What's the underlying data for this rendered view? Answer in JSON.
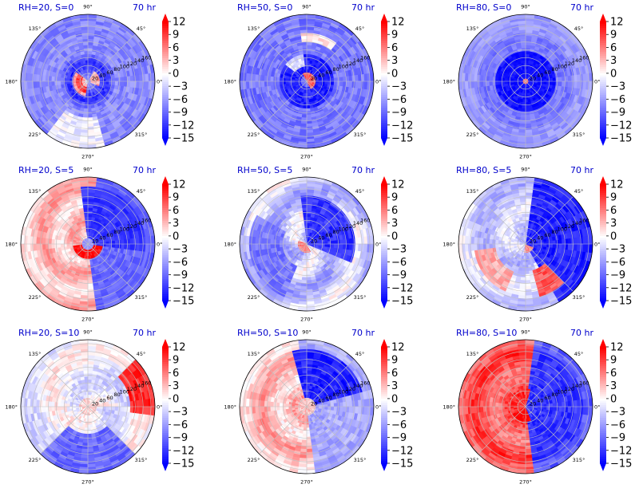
{
  "colors": {
    "blue": "#0000ff",
    "white": "#ffffff",
    "red": "#ff0000",
    "title": "#0000cc",
    "grid": "#c0c0c0"
  },
  "chart_data": [
    {
      "type": "heatmap",
      "projection": "polar",
      "title_left": "RH=20, S=0",
      "title_right": "70 hr",
      "theta_ticks": [
        "90°",
        "45°",
        "0°",
        "315°",
        "270°",
        "225°",
        "180°",
        "135°"
      ],
      "r_ticks": [
        20,
        40,
        60,
        80,
        100,
        120,
        140,
        160
      ],
      "r_max": 170,
      "colorbar": {
        "ticks": [
          12,
          9,
          6,
          3,
          0,
          -3,
          -6,
          -9,
          -12,
          -15
        ],
        "tick_labels": [
          "12",
          "9",
          "6",
          "3",
          "0",
          "−3",
          "−6",
          "−9",
          "−12",
          "−15"
        ],
        "range": [
          -15,
          12
        ],
        "extend": "both"
      },
      "value_features": {
        "background": -7,
        "inner_ring": -13,
        "core_max": 11,
        "core_angle_deg": 200,
        "core_radius": 24
      }
    },
    {
      "type": "heatmap",
      "projection": "polar",
      "title_left": "RH=50, S=0",
      "title_right": "70 hr",
      "theta_ticks": [
        "90°",
        "45°",
        "0°",
        "315°",
        "270°",
        "225°",
        "180°",
        "135°"
      ],
      "r_ticks": [
        20,
        40,
        60,
        80,
        100,
        120,
        140,
        160
      ],
      "r_max": 170,
      "colorbar": {
        "ticks": [
          12,
          9,
          6,
          3,
          0,
          -3,
          -6,
          -9,
          -12,
          -15
        ],
        "tick_labels": [
          "12",
          "9",
          "6",
          "3",
          "0",
          "−3",
          "−6",
          "−9",
          "−12",
          "−15"
        ],
        "range": [
          -15,
          12
        ],
        "extend": "both"
      },
      "value_features": {
        "background": -8,
        "inner_ring": -13,
        "core_max": 9,
        "core_angle_deg": 30,
        "core_radius": 16
      }
    },
    {
      "type": "heatmap",
      "projection": "polar",
      "title_left": "RH=80, S=0",
      "title_right": "70 hr",
      "theta_ticks": [
        "90°",
        "45°",
        "0°",
        "315°",
        "270°",
        "225°",
        "180°",
        "135°"
      ],
      "r_ticks": [
        20,
        40,
        60,
        80,
        100,
        120,
        140,
        160
      ],
      "r_max": 170,
      "colorbar": {
        "ticks": [
          12,
          9,
          6,
          3,
          0,
          -3,
          -6,
          -9,
          -12,
          -15
        ],
        "tick_labels": [
          "12",
          "9",
          "6",
          "3",
          "0",
          "−3",
          "−6",
          "−9",
          "−12",
          "−15"
        ],
        "range": [
          -15,
          12
        ],
        "extend": "both"
      },
      "value_features": {
        "background": -8,
        "inner_ring": -14,
        "core_max": 8,
        "core_angle_deg": 0,
        "core_radius": 8
      }
    },
    {
      "type": "heatmap",
      "projection": "polar",
      "title_left": "RH=20, S=5",
      "title_right": "70 hr",
      "theta_ticks": [
        "90°",
        "45°",
        "0°",
        "315°",
        "270°",
        "225°",
        "180°",
        "135°"
      ],
      "r_ticks": [
        20,
        40,
        60,
        80,
        100,
        120,
        140,
        160
      ],
      "r_max": 170,
      "colorbar": {
        "ticks": [
          12,
          9,
          6,
          3,
          0,
          -3,
          -6,
          -9,
          -12,
          -15
        ],
        "tick_labels": [
          "12",
          "9",
          "6",
          "3",
          "0",
          "−3",
          "−6",
          "−9",
          "−12",
          "−15"
        ],
        "range": [
          -15,
          12
        ],
        "extend": "both"
      },
      "value_features": {
        "background": 3,
        "west_side": 4,
        "east_side": -11,
        "core_max": 10,
        "core_angle_deg": 270,
        "core_radius": 26
      }
    },
    {
      "type": "heatmap",
      "projection": "polar",
      "title_left": "RH=50, S=5",
      "title_right": "70 hr",
      "theta_ticks": [
        "90°",
        "45°",
        "0°",
        "315°",
        "270°",
        "225°",
        "180°",
        "135°"
      ],
      "r_ticks": [
        20,
        40,
        60,
        80,
        100,
        120,
        140,
        160
      ],
      "r_max": 170,
      "colorbar": {
        "ticks": [
          12,
          9,
          6,
          3,
          0,
          -3,
          -6,
          -9,
          -12,
          -15
        ],
        "tick_labels": [
          "12",
          "9",
          "6",
          "3",
          "0",
          "−3",
          "−6",
          "−9",
          "−12",
          "−15"
        ],
        "range": [
          -15,
          12
        ],
        "extend": "both"
      },
      "value_features": {
        "background": -3,
        "spiral_min": -12,
        "core_max": 6,
        "core_angle_deg": 230,
        "core_radius": 14
      }
    },
    {
      "type": "heatmap",
      "projection": "polar",
      "title_left": "RH=80, S=5",
      "title_right": "70 hr",
      "theta_ticks": [
        "90°",
        "45°",
        "0°",
        "315°",
        "270°",
        "225°",
        "180°",
        "135°"
      ],
      "r_ticks": [
        20,
        40,
        60,
        80,
        100,
        120,
        140,
        160
      ],
      "r_max": 170,
      "colorbar": {
        "ticks": [
          12,
          9,
          6,
          3,
          0,
          -3,
          -6,
          -9,
          -12,
          -15
        ],
        "tick_labels": [
          "12",
          "9",
          "6",
          "3",
          "0",
          "−3",
          "−6",
          "−9",
          "−12",
          "−15"
        ],
        "range": [
          -15,
          12
        ],
        "extend": "both"
      },
      "value_features": {
        "background": -4,
        "east_side": -13,
        "rainband_max": 8,
        "rainband_angle_deg": 300,
        "core_max": 6
      }
    },
    {
      "type": "heatmap",
      "projection": "polar",
      "title_left": "RH=20, S=10",
      "title_right": "70 hr",
      "theta_ticks": [
        "90°",
        "45°",
        "0°",
        "315°",
        "270°",
        "225°",
        "180°",
        "135°"
      ],
      "r_ticks": [
        20,
        40,
        60,
        80,
        100,
        120,
        140,
        160
      ],
      "r_max": 170,
      "colorbar": {
        "ticks": [
          12,
          9,
          6,
          3,
          0,
          -3,
          -6,
          -9,
          -12,
          -15
        ],
        "tick_labels": [
          "12",
          "9",
          "6",
          "3",
          "0",
          "−3",
          "−6",
          "−9",
          "−12",
          "−15"
        ],
        "range": [
          -15,
          12
        ],
        "extend": "both"
      },
      "value_features": {
        "background": -1,
        "south_min": -9,
        "northeast_max": 11,
        "core_max": 4
      }
    },
    {
      "type": "heatmap",
      "projection": "polar",
      "title_left": "RH=50, S=10",
      "title_right": "70 hr",
      "theta_ticks": [
        "90°",
        "45°",
        "0°",
        "315°",
        "270°",
        "225°",
        "180°",
        "135°"
      ],
      "r_ticks": [
        20,
        40,
        60,
        80,
        100,
        120,
        140,
        160
      ],
      "r_max": 170,
      "colorbar": {
        "ticks": [
          12,
          9,
          6,
          3,
          0,
          -3,
          -6,
          -9,
          -12,
          -15
        ],
        "tick_labels": [
          "12",
          "9",
          "6",
          "3",
          "0",
          "−3",
          "−6",
          "−9",
          "−12",
          "−15"
        ],
        "range": [
          -15,
          12
        ],
        "extend": "both"
      },
      "value_features": {
        "west_side": 3,
        "northeast_min": -13,
        "southeast": -5,
        "core_max": 3
      }
    },
    {
      "type": "heatmap",
      "projection": "polar",
      "title_left": "RH=80, S=10",
      "title_right": "70 hr",
      "theta_ticks": [
        "90°",
        "45°",
        "0°",
        "315°",
        "270°",
        "225°",
        "180°",
        "135°"
      ],
      "r_ticks": [
        20,
        40,
        60,
        80,
        100,
        120,
        140,
        160
      ],
      "r_max": 170,
      "colorbar": {
        "ticks": [
          12,
          9,
          6,
          3,
          0,
          -3,
          -6,
          -9,
          -12,
          -15
        ],
        "tick_labels": [
          "12",
          "9",
          "6",
          "3",
          "0",
          "−3",
          "−6",
          "−9",
          "−12",
          "−15"
        ],
        "range": [
          -15,
          12
        ],
        "extend": "both"
      },
      "value_features": {
        "west_side": 8,
        "east_side": -12,
        "core_max": 12,
        "core_angle_deg": 200
      }
    }
  ]
}
